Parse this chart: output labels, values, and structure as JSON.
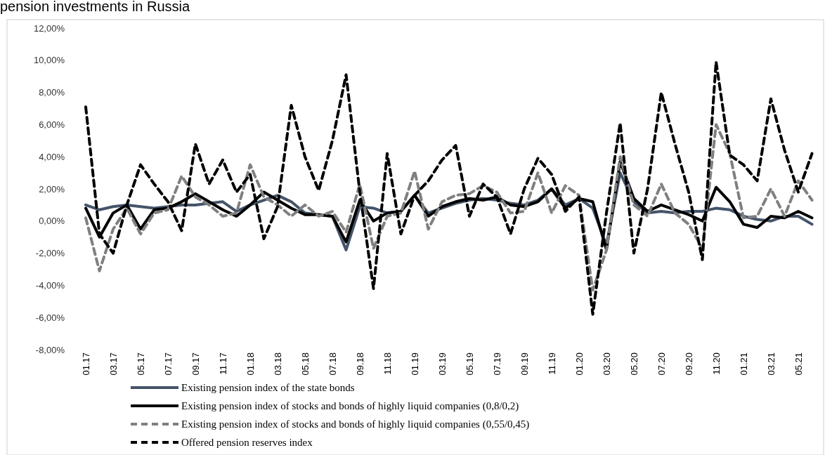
{
  "chart_data": {
    "type": "line",
    "title": "pension investments in Russia",
    "categories": [
      "01.17",
      null,
      "03.17",
      null,
      "05.17",
      null,
      "07.17",
      null,
      "09.17",
      null,
      "11.17",
      null,
      "01.18",
      null,
      "03.18",
      null,
      "05.18",
      null,
      "07.18",
      null,
      "09.18",
      null,
      "11.18",
      null,
      "01.19",
      null,
      "03.19",
      null,
      "05.19",
      null,
      "07.19",
      null,
      "09.19",
      null,
      "11.19",
      null,
      "01.20",
      null,
      "03.20",
      null,
      "05.20",
      null,
      "07.20",
      null,
      "09.20",
      null,
      "11.20",
      null,
      "01.21",
      null,
      "03.21",
      null,
      "05.21",
      null
    ],
    "ylim": [
      -8,
      12
    ],
    "yticks": [
      {
        "value": -8,
        "label": "-8,00%"
      },
      {
        "value": -6,
        "label": "-6,00%"
      },
      {
        "value": -4,
        "label": "-4,00%"
      },
      {
        "value": -2,
        "label": "-2,00%"
      },
      {
        "value": 0,
        "label": "0,00%"
      },
      {
        "value": 2,
        "label": "2,00%"
      },
      {
        "value": 4,
        "label": "4,00%"
      },
      {
        "value": 6,
        "label": "6,00%"
      },
      {
        "value": 8,
        "label": "8,00%"
      },
      {
        "value": 10,
        "label": "10,00%"
      },
      {
        "value": 12,
        "label": "12,00%"
      }
    ],
    "grid": false,
    "legend": "bottom",
    "marker": "none",
    "series": [
      {
        "name": "Existing pension index of the state bonds",
        "color": "#44546a",
        "line_style": "solid",
        "values": [
          1.0,
          0.7,
          0.9,
          1.0,
          0.9,
          0.8,
          0.9,
          1.0,
          1.0,
          1.1,
          1.2,
          0.6,
          1.0,
          1.3,
          1.6,
          1.2,
          0.5,
          0.4,
          0.3,
          -1.8,
          0.9,
          0.8,
          0.5,
          0.6,
          1.6,
          0.5,
          0.8,
          1.1,
          1.3,
          1.4,
          1.3,
          1.1,
          1.0,
          1.3,
          2.0,
          1.0,
          1.4,
          0.8,
          -1.5,
          3.0,
          1.2,
          0.5,
          0.6,
          0.5,
          0.6,
          0.6,
          0.8,
          0.7,
          0.3,
          0.1,
          0.0,
          0.3,
          0.3,
          -0.2
        ]
      },
      {
        "name": "Existing pension index of stocks and bonds of highly liquid companies (0,8/0,2)",
        "color": "#000000",
        "line_style": "solid",
        "values": [
          0.8,
          -1.0,
          0.5,
          1.0,
          -0.5,
          0.7,
          0.8,
          1.2,
          1.7,
          1.2,
          0.7,
          0.3,
          1.0,
          1.8,
          1.3,
          0.8,
          0.4,
          0.4,
          0.3,
          -1.3,
          1.3,
          0.0,
          0.5,
          0.6,
          1.6,
          0.3,
          0.9,
          1.2,
          1.4,
          1.3,
          1.5,
          1.0,
          0.9,
          1.2,
          2.0,
          0.8,
          1.4,
          1.2,
          -1.8,
          3.7,
          1.4,
          0.6,
          1.0,
          0.7,
          0.4,
          0.0,
          2.1,
          1.2,
          -0.2,
          -0.4,
          0.3,
          0.2,
          0.6,
          0.2
        ]
      },
      {
        "name": "Existing pension index of stocks and bonds of highly liquid companies (0,55/0,45)",
        "color": "#808080",
        "line_style": "dashed",
        "values": [
          0.2,
          -3.1,
          -0.5,
          0.8,
          -0.8,
          0.5,
          0.7,
          2.8,
          1.5,
          1.0,
          0.3,
          0.5,
          3.5,
          1.5,
          1.0,
          0.3,
          1.0,
          0.3,
          0.6,
          -0.7,
          2.3,
          -1.7,
          0.3,
          0.5,
          3.1,
          -0.5,
          1.2,
          1.6,
          1.7,
          2.2,
          1.8,
          0.5,
          0.6,
          3.0,
          0.5,
          2.2,
          1.6,
          -4.3,
          -1.8,
          4.0,
          1.0,
          0.3,
          2.3,
          0.5,
          -0.2,
          -1.7,
          6.0,
          4.2,
          0.2,
          0.3,
          2.0,
          0.3,
          2.5,
          1.3
        ]
      },
      {
        "name": "Offered pension reserves index",
        "color": "#000000",
        "line_style": "dashed",
        "values": [
          7.1,
          -0.8,
          -2.0,
          1.0,
          3.5,
          2.3,
          1.2,
          -0.6,
          4.8,
          2.3,
          3.8,
          1.8,
          2.9,
          -1.1,
          0.9,
          7.2,
          4.0,
          1.9,
          5.0,
          9.1,
          1.8,
          -4.2,
          4.2,
          -0.8,
          1.6,
          2.5,
          3.8,
          4.7,
          0.3,
          2.3,
          1.5,
          -0.8,
          2.0,
          3.9,
          2.9,
          0.6,
          1.5,
          -5.8,
          0.5,
          6.1,
          -2.0,
          2.0,
          8.0,
          4.8,
          1.8,
          -2.4,
          9.9,
          4.1,
          3.5,
          2.5,
          7.6,
          4.4,
          1.8,
          4.2
        ]
      }
    ]
  }
}
